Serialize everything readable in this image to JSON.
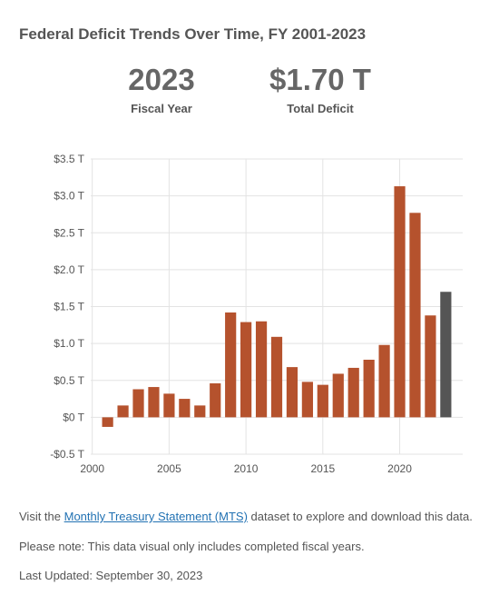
{
  "title": "Federal Deficit Trends Over Time, FY 2001-2023",
  "kpis": {
    "year_value": "2023",
    "year_label": "Fiscal Year",
    "deficit_value": "$1.70 T",
    "deficit_label": "Total Deficit"
  },
  "colors": {
    "bar": "#b5522d",
    "highlight": "#555555",
    "grid": "#e3e3e3",
    "axis_text": "#555555",
    "link": "#2272b3"
  },
  "chart_data": {
    "type": "bar",
    "x": [
      2001,
      2002,
      2003,
      2004,
      2005,
      2006,
      2007,
      2008,
      2009,
      2010,
      2011,
      2012,
      2013,
      2014,
      2015,
      2016,
      2017,
      2018,
      2019,
      2020,
      2021,
      2022,
      2023
    ],
    "values": [
      -0.13,
      0.16,
      0.38,
      0.41,
      0.32,
      0.25,
      0.16,
      0.46,
      1.42,
      1.29,
      1.3,
      1.09,
      0.68,
      0.48,
      0.44,
      0.59,
      0.67,
      0.78,
      0.98,
      3.13,
      2.77,
      1.38,
      1.7
    ],
    "highlight_x": 2023,
    "ylim": [
      -0.5,
      3.5
    ],
    "yticks": [
      -0.5,
      0,
      0.5,
      1.0,
      1.5,
      2.0,
      2.5,
      3.0,
      3.5
    ],
    "ytick_labels": [
      "-$0.5 T",
      "$0 T",
      "$0.5 T",
      "$1.0 T",
      "$1.5 T",
      "$2.0 T",
      "$2.5 T",
      "$3.0 T",
      "$3.5 T"
    ],
    "xlim": [
      1999.9,
      2024.1
    ],
    "xticks": [
      2000,
      2005,
      2010,
      2015,
      2020
    ],
    "xtick_labels": [
      "2000",
      "2005",
      "2010",
      "2015",
      "2020"
    ],
    "grid": true,
    "xlabel": "",
    "ylabel": ""
  },
  "footer": {
    "line1_pre": "Visit the ",
    "line1_link": "Monthly Treasury Statement (MTS)",
    "line1_post": " dataset to explore and download this data.",
    "line2": "Please note: This data visual only includes completed fiscal years.",
    "line3": "Last Updated: September 30, 2023"
  }
}
